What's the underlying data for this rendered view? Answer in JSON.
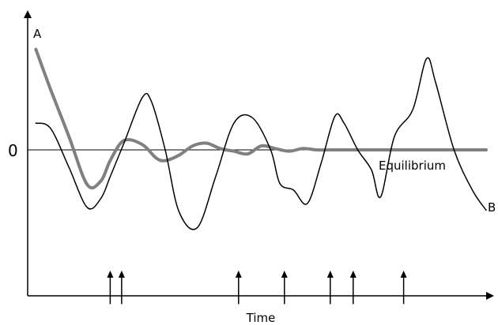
{
  "chart_data": {
    "type": "line",
    "xlabel": "Time",
    "ylabel": "",
    "zero_label": "0",
    "equilibrium_label": "Equilibrium",
    "xlim": [
      0,
      100
    ],
    "ylim": [
      -10,
      10
    ],
    "grid": false,
    "series": [
      {
        "name": "A",
        "color": "#808080",
        "x": [
          1.8,
          5,
          9,
          13,
          16,
          18,
          21,
          25,
          28,
          30,
          33,
          36,
          39,
          42,
          45,
          48,
          51,
          54,
          57,
          60,
          63,
          66,
          70,
          75,
          80,
          85,
          90,
          95,
          100
        ],
        "y": [
          7.5,
          4.5,
          1.0,
          -2.6,
          -2.3,
          -0.8,
          0.7,
          0.4,
          -0.6,
          -0.8,
          -0.4,
          0.3,
          0.5,
          0.1,
          -0.1,
          -0.3,
          0.3,
          0.1,
          -0.1,
          0.1,
          0.0,
          0.0,
          0.0,
          0.0,
          0.0,
          0.0,
          0.0,
          0.0,
          0.0
        ]
      },
      {
        "name": "B",
        "color": "#000000",
        "x": [
          1.8,
          5,
          9,
          13,
          16,
          18,
          21,
          25,
          27,
          30,
          33,
          37,
          41,
          45,
          49,
          53,
          55,
          58,
          61,
          64,
          67,
          69,
          72,
          75,
          77,
          80,
          84,
          87,
          89,
          93,
          97,
          100
        ],
        "y": [
          2.0,
          1.6,
          -1.3,
          -4.3,
          -3.6,
          -2.0,
          0.5,
          3.9,
          3.6,
          0.0,
          -4.6,
          -5.8,
          -2.0,
          2.0,
          2.4,
          0.0,
          -2.5,
          -3.0,
          -4.0,
          -1.0,
          2.5,
          2.0,
          0.0,
          -1.5,
          -3.5,
          1.0,
          3.0,
          6.8,
          5.0,
          0.0,
          -3.0,
          -4.5
        ]
      }
    ],
    "line_labels": {
      "A": "A",
      "B": "B"
    },
    "arrows_x": [
      18,
      20.5,
      46,
      56,
      66,
      71,
      82
    ],
    "arrows_y_range": [
      -9.0,
      -11.5
    ]
  }
}
